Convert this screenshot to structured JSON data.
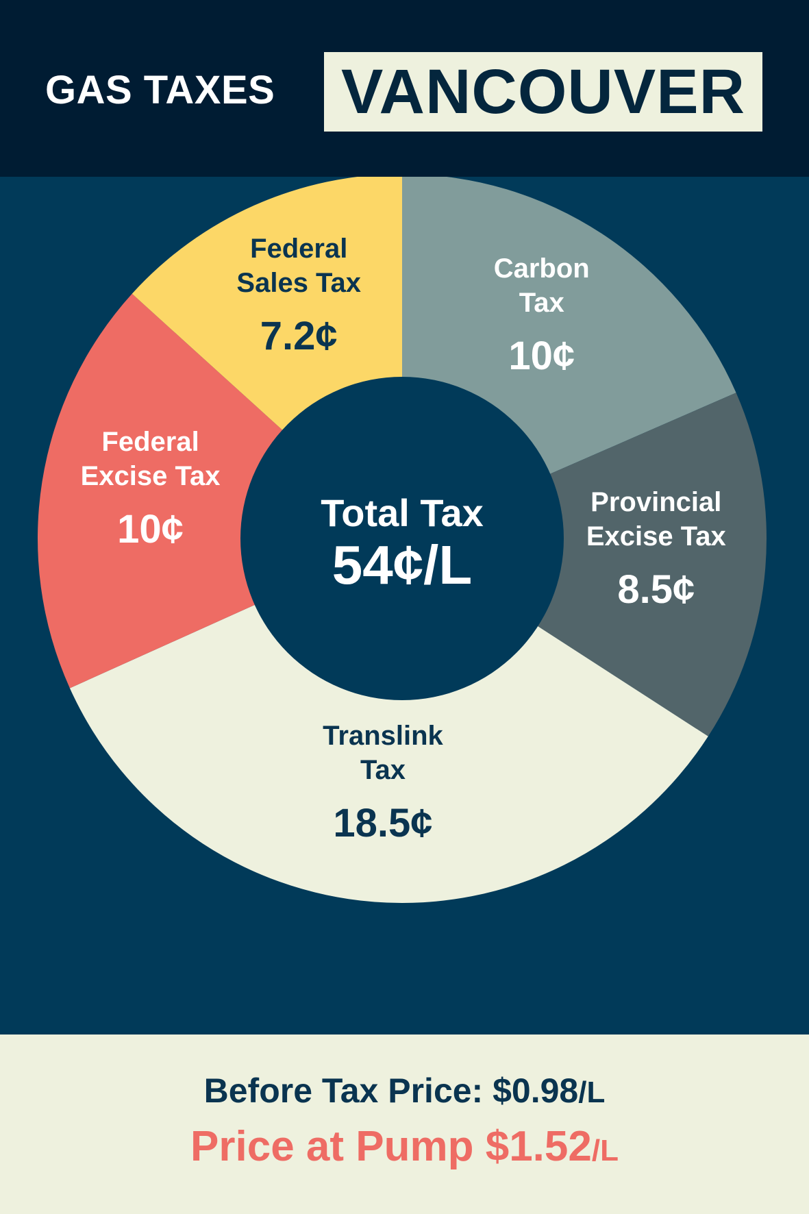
{
  "header": {
    "title": "GAS TAXES",
    "city": "VANCOUVER"
  },
  "colors": {
    "header_bg": "#001c33",
    "body_bg": "#013a59",
    "footer_bg": "#eef1de",
    "accent_red": "#ee6c64",
    "navy_text": "#0a3450"
  },
  "chart_data": {
    "type": "pie",
    "variant": "donut",
    "unit": "¢",
    "center_label": "Total Tax",
    "center_value": "54¢/L",
    "slices": [
      {
        "name_lines": [
          "Carbon",
          "Tax"
        ],
        "value": 10,
        "label": "10¢",
        "color": "#819c9b",
        "text_color": "#ffffff"
      },
      {
        "name_lines": [
          "Provincial",
          "Excise Tax"
        ],
        "value": 8.5,
        "label": "8.5¢",
        "color": "#52656a",
        "text_color": "#ffffff"
      },
      {
        "name_lines": [
          "Translink",
          "Tax"
        ],
        "value": 18.5,
        "label": "18.5¢",
        "color": "#eef1de",
        "text_color": "#0a3450"
      },
      {
        "name_lines": [
          "Federal",
          "Excise Tax"
        ],
        "value": 10,
        "label": "10¢",
        "color": "#ee6c64",
        "text_color": "#ffffff"
      },
      {
        "name_lines": [
          "Federal",
          "Sales Tax"
        ],
        "value": 7.2,
        "label": "7.2¢",
        "color": "#fcd767",
        "text_color": "#0a3450"
      }
    ]
  },
  "footer": {
    "before_tax_label": "Before Tax Price: $0.98",
    "before_tax_unit": "/L",
    "pump_label": "Price at Pump $1.52",
    "pump_unit": "/L"
  }
}
